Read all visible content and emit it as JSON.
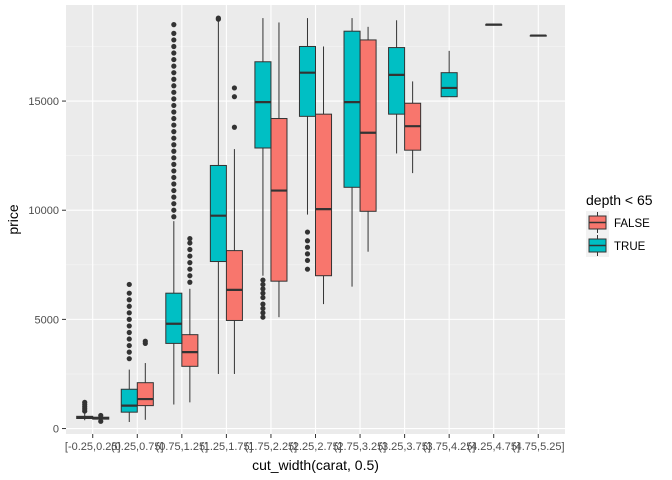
{
  "chart_data": {
    "type": "boxplot",
    "title": "",
    "xlabel": "cut_width(carat, 0.5)",
    "ylabel": "price",
    "ylim": [
      -250,
      19400
    ],
    "yticks": [
      0,
      5000,
      10000,
      15000
    ],
    "ytick_labels": [
      "0",
      "5000",
      "10000",
      "15000"
    ],
    "categories": [
      "[-0.25,0.25]",
      "(0.25,0.75]",
      "(0.75,1.25]",
      "(1.25,1.75]",
      "(1.75,2.25]",
      "(2.25,2.75]",
      "(2.75,3.25]",
      "(3.25,3.75]",
      "(3.75,4.25]",
      "(4.25,4.75]",
      "(4.75,5.25]"
    ],
    "legend": {
      "title": "depth < 65",
      "position": "right",
      "entries": [
        {
          "label": "FALSE",
          "color": "#F8766D"
        },
        {
          "label": "TRUE",
          "color": "#00BFC4"
        }
      ]
    },
    "grid": true,
    "panel_background": "#EBEBEB",
    "series": [
      {
        "name": "FALSE",
        "color": "#F8766D",
        "boxes": [
          {
            "cat": 0,
            "lo": 380,
            "q1": 430,
            "med": 470,
            "q3": 520,
            "hi": 560,
            "outliers": [
              330,
              600
            ]
          },
          {
            "cat": 1,
            "lo": 400,
            "q1": 1050,
            "med": 1350,
            "q3": 2100,
            "hi": 3000,
            "outliers": [
              3900,
              4000
            ]
          },
          {
            "cat": 2,
            "lo": 1200,
            "q1": 2850,
            "med": 3500,
            "q3": 4300,
            "hi": 6400,
            "outliers": [
              6700,
              7000,
              7300,
              7600,
              7900,
              8200,
              8500,
              8700
            ]
          },
          {
            "cat": 3,
            "lo": 2500,
            "q1": 4950,
            "med": 6350,
            "q3": 8150,
            "hi": 12800,
            "outliers": [
              13800,
              15200,
              15600
            ]
          },
          {
            "cat": 4,
            "lo": 5100,
            "q1": 6750,
            "med": 10900,
            "q3": 14200,
            "hi": 18600,
            "outliers": []
          },
          {
            "cat": 5,
            "lo": 5700,
            "q1": 7000,
            "med": 10050,
            "q3": 14400,
            "hi": 17500,
            "outliers": []
          },
          {
            "cat": 6,
            "lo": 8100,
            "q1": 9950,
            "med": 13550,
            "q3": 17800,
            "hi": 18400,
            "outliers": []
          },
          {
            "cat": 7,
            "lo": 11700,
            "q1": 12750,
            "med": 13850,
            "q3": 14900,
            "hi": 15900,
            "outliers": []
          }
        ]
      },
      {
        "name": "TRUE",
        "color": "#00BFC4",
        "boxes": [
          {
            "cat": 0,
            "lo": 380,
            "q1": 460,
            "med": 500,
            "q3": 560,
            "hi": 700,
            "outliers": [
              800,
              900,
              1000,
              1100,
              1200
            ]
          },
          {
            "cat": 1,
            "lo": 300,
            "q1": 750,
            "med": 1050,
            "q3": 1800,
            "hi": 2700,
            "outliers": [
              3200,
              3500,
              3800,
              4100,
              4400,
              4700,
              5000,
              5300,
              5600,
              5900,
              6200,
              6600
            ]
          },
          {
            "cat": 2,
            "lo": 1100,
            "q1": 3900,
            "med": 4800,
            "q3": 6200,
            "hi": 9500,
            "outliers": [
              9700,
              10000,
              10300,
              10600,
              10900,
              11200,
              11500,
              11800,
              12100,
              12400,
              12700,
              13000,
              13300,
              13600,
              13900,
              14200,
              14500,
              14800,
              15100,
              15400,
              15700,
              16000,
              16300,
              16600,
              16900,
              17200,
              17500,
              17800,
              18100,
              18500
            ]
          },
          {
            "cat": 3,
            "lo": 2500,
            "q1": 7650,
            "med": 9750,
            "q3": 12050,
            "hi": 18700,
            "outliers": [
              18750,
              18800
            ]
          },
          {
            "cat": 4,
            "lo": 7000,
            "q1": 12850,
            "med": 14950,
            "q3": 16800,
            "hi": 18800,
            "outliers": [
              5100,
              5300,
              5500,
              5700,
              6000,
              6200,
              6400,
              6600,
              6800
            ]
          },
          {
            "cat": 5,
            "lo": 9800,
            "q1": 14300,
            "med": 16300,
            "q3": 17500,
            "hi": 18800,
            "outliers": [
              7300,
              7700,
              8000,
              8300,
              8600,
              9000
            ]
          },
          {
            "cat": 6,
            "lo": 6500,
            "q1": 11050,
            "med": 14950,
            "q3": 18200,
            "hi": 18800,
            "outliers": []
          },
          {
            "cat": 7,
            "lo": 12600,
            "q1": 14400,
            "med": 16200,
            "q3": 17450,
            "hi": 18700,
            "outliers": []
          },
          {
            "cat": 8,
            "lo": 15200,
            "q1": 15200,
            "med": 15600,
            "q3": 16300,
            "hi": 17300,
            "outliers": []
          },
          {
            "cat": 9,
            "lo": 18500,
            "q1": 18500,
            "med": 18500,
            "q3": 18500,
            "hi": 18500,
            "outliers": []
          },
          {
            "cat": 10,
            "lo": 18000,
            "q1": 18000,
            "med": 18000,
            "q3": 18000,
            "hi": 18000,
            "outliers": []
          }
        ]
      }
    ]
  }
}
